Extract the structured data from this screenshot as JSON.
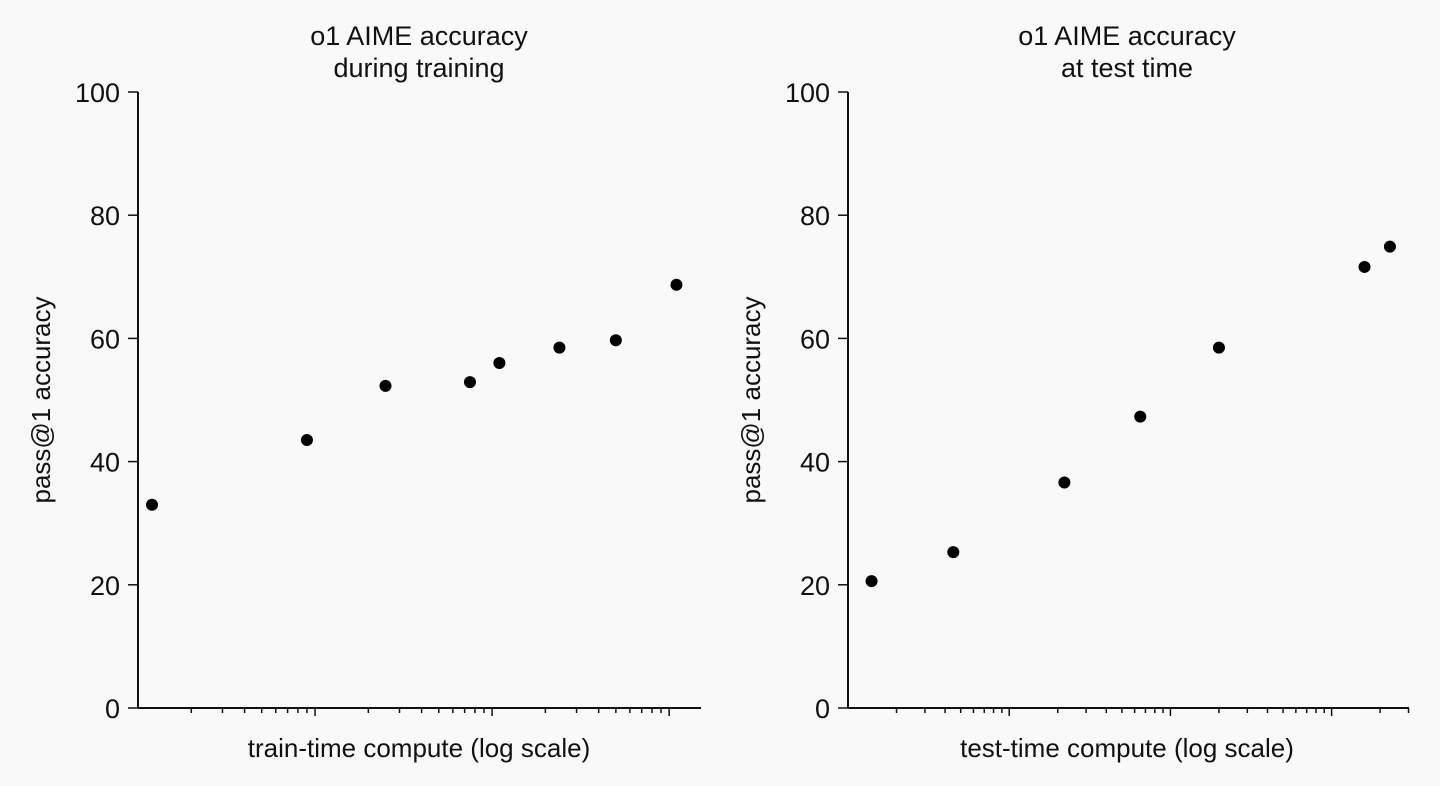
{
  "chart_data": [
    {
      "type": "scatter",
      "title_lines": [
        "o1 AIME accuracy",
        "during training"
      ],
      "xlabel": "train-time compute (log scale)",
      "ylabel": "pass@1 accuracy",
      "ylim": [
        0,
        100
      ],
      "yticks": [
        0,
        20,
        40,
        60,
        80,
        100
      ],
      "x_scale": "log",
      "x_tick_labels": "none",
      "grid": false,
      "points": [
        {
          "x": 1.2,
          "y": 33
        },
        {
          "x": 9,
          "y": 43.5
        },
        {
          "x": 25,
          "y": 52.3
        },
        {
          "x": 75,
          "y": 52.9
        },
        {
          "x": 110,
          "y": 56
        },
        {
          "x": 240,
          "y": 58.5
        },
        {
          "x": 500,
          "y": 59.7
        },
        {
          "x": 1100,
          "y": 68.7
        }
      ]
    },
    {
      "type": "scatter",
      "title_lines": [
        "o1 AIME accuracy",
        "at test time"
      ],
      "xlabel": "test-time compute (log scale)",
      "ylabel": "pass@1 accuracy",
      "ylim": [
        0,
        100
      ],
      "yticks": [
        0,
        20,
        40,
        60,
        80,
        100
      ],
      "x_scale": "log",
      "x_tick_labels": "none",
      "grid": false,
      "points": [
        {
          "x": 1.4,
          "y": 20.6
        },
        {
          "x": 4.5,
          "y": 25.3
        },
        {
          "x": 22,
          "y": 36.6
        },
        {
          "x": 65,
          "y": 47.3
        },
        {
          "x": 200,
          "y": 58.5
        },
        {
          "x": 1600,
          "y": 71.6
        },
        {
          "x": 2300,
          "y": 74.9
        }
      ]
    }
  ]
}
